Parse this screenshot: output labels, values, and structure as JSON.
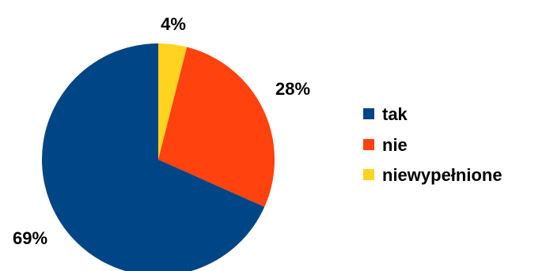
{
  "chart_data": {
    "type": "pie",
    "categories": [
      "tak",
      "nie",
      "niewypełnione"
    ],
    "values": [
      69,
      28,
      4
    ],
    "data_labels": [
      "69%",
      "28%",
      "4%"
    ],
    "colors": [
      "#004586",
      "#ff420e",
      "#ffd320"
    ],
    "start_angle_deg": 0,
    "direction": "clockwise",
    "legend": {
      "placement": "right",
      "entries": [
        "tak",
        "nie",
        "niewypełnione"
      ]
    }
  }
}
